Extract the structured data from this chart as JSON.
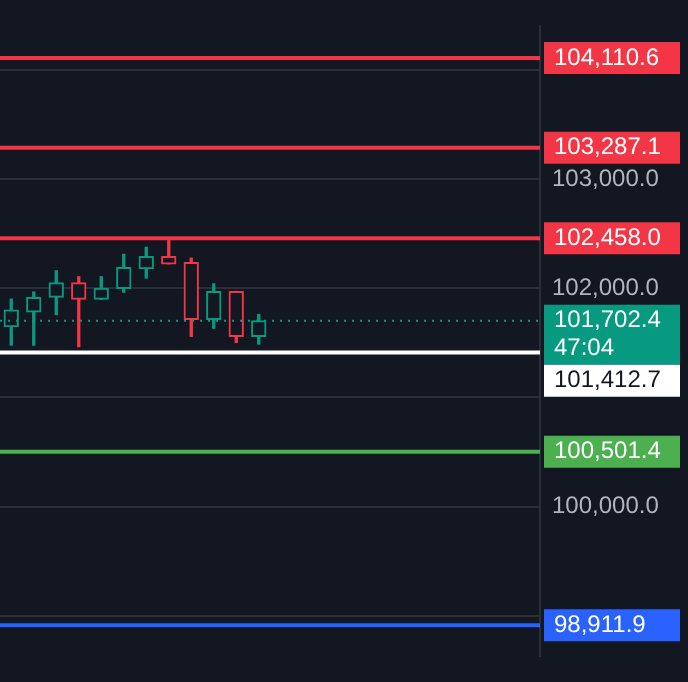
{
  "chart_data": {
    "type": "candlestick",
    "categories": [
      null,
      null,
      null,
      null,
      null,
      null,
      null,
      null,
      null,
      null,
      null,
      null,
      null,
      null,
      null,
      null,
      null,
      null,
      null,
      null,
      null,
      null,
      null,
      null
    ],
    "ohlc": [
      [
        101650,
        101900,
        101480,
        101800
      ],
      [
        101785,
        101965,
        101480,
        101915
      ],
      [
        101920,
        102160,
        101760,
        102050
      ],
      [
        102050,
        102105,
        101465,
        101900
      ],
      [
        101900,
        102105,
        101900,
        102000
      ],
      [
        102000,
        102310,
        101965,
        102190
      ],
      [
        102180,
        102375,
        102095,
        102290
      ],
      [
        102290,
        102440,
        102225,
        102225
      ],
      [
        102235,
        102275,
        101560,
        101715
      ],
      [
        101715,
        102040,
        101635,
        101970
      ],
      [
        101970,
        101970,
        101505,
        101560
      ],
      [
        101560,
        101760,
        101490,
        101700
      ],
      null,
      null,
      null,
      null,
      null,
      null,
      null,
      null,
      null,
      null,
      null,
      null
    ],
    "colors": [
      "#089981",
      "#089981",
      "#089981",
      "#f23645",
      "#089981",
      "#089981",
      "#089981",
      "#f23645",
      "#f23645",
      "#089981",
      "#f23645",
      "#089981",
      null,
      null,
      null,
      null,
      null,
      null,
      null,
      null,
      null,
      null,
      null,
      null
    ],
    "ylim": [
      98634,
      104400
    ],
    "yticks": [
      {
        "value": 99000,
        "label": null
      },
      {
        "value": 100000,
        "label": "100,000.0"
      },
      {
        "value": 101000,
        "label": null
      },
      {
        "value": 102000,
        "label": "102,000.0"
      },
      {
        "value": 103000,
        "label": "103,000.0"
      },
      {
        "value": 104000,
        "label": null
      }
    ],
    "tick_labels": "y",
    "grid": "y",
    "ref_lines": [
      {
        "axis": "y",
        "value": 104110.6,
        "label": "104,110.6",
        "color": "#f23645"
      },
      {
        "axis": "y",
        "value": 103287.1,
        "label": "103,287.1",
        "color": "#f23645"
      },
      {
        "axis": "y",
        "value": 102458.0,
        "label": "102,458.0",
        "color": "#f23645"
      },
      {
        "axis": "y",
        "value": 101702.4,
        "label": "101,702.4",
        "color": "#089981",
        "line_style": "dotted"
      },
      {
        "axis": "y",
        "value": 101412.7,
        "label": "101,412.7",
        "color": "#ffffff"
      },
      {
        "axis": "y",
        "value": 100501.4,
        "label": "100,501.4",
        "color": "#4caf50"
      },
      {
        "axis": "y",
        "value": 98911.9,
        "label": "98,911.9",
        "color": "#2962ff"
      }
    ],
    "annotations": [
      "47:04"
    ]
  }
}
